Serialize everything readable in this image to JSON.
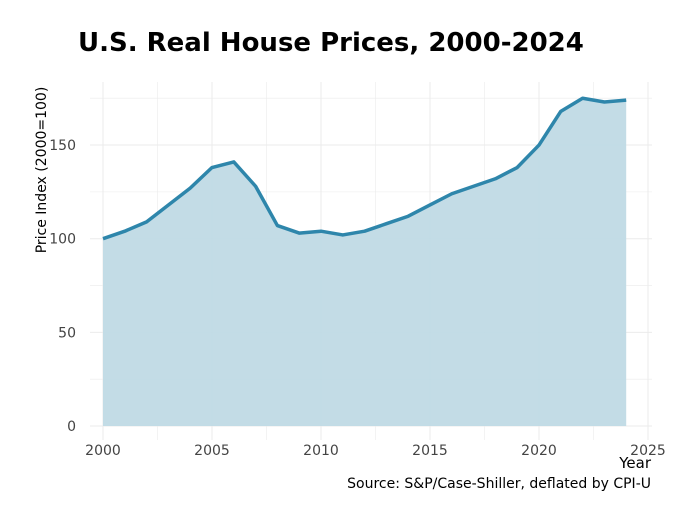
{
  "chart_data": {
    "type": "area",
    "title": "U.S. Real House Prices, 2000-2024",
    "xlabel": "Year",
    "ylabel": "Price Index (2000=100)",
    "caption": "Source: S&P/Case-Shiller, deflated by CPI-U",
    "x": [
      2000,
      2001,
      2002,
      2003,
      2004,
      2005,
      2006,
      2007,
      2008,
      2009,
      2010,
      2011,
      2012,
      2013,
      2014,
      2015,
      2016,
      2017,
      2018,
      2019,
      2020,
      2021,
      2022,
      2023,
      2024
    ],
    "series": [
      {
        "values": [
          100,
          104,
          109,
          118,
          127,
          138,
          141,
          128,
          107,
          103,
          104,
          102,
          104,
          108,
          112,
          118,
          124,
          128,
          132,
          138,
          150,
          168,
          175,
          173,
          174
        ]
      }
    ],
    "xlim": [
      2000,
      2025
    ],
    "ylim": [
      0,
      175
    ],
    "xticks": [
      "2000",
      "2005",
      "2010",
      "2015",
      "2020",
      "2025"
    ],
    "yticks": [
      "0",
      "50",
      "100",
      "150"
    ],
    "grid": true,
    "colors": {
      "line": "#2e86ab",
      "fill": "#c0dae5"
    }
  }
}
